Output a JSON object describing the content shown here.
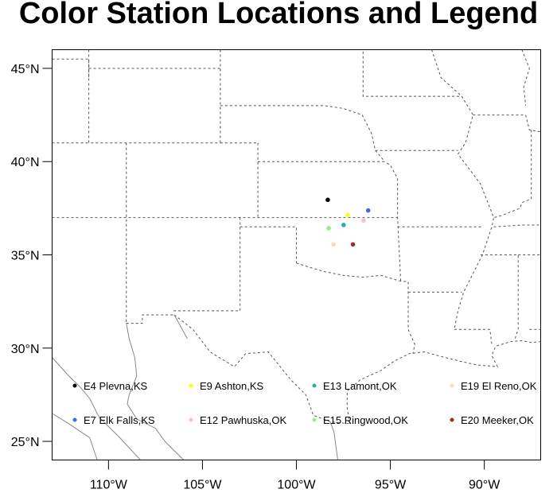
{
  "title": "Color Station Locations and Legend",
  "map": {
    "projection": "cylindrical-equidistant",
    "lon_range": [
      -113,
      -87
    ],
    "lat_range": [
      24,
      46
    ],
    "lon_ticks": [
      {
        "value": -110,
        "label": "110°W"
      },
      {
        "value": -105,
        "label": "105°W"
      },
      {
        "value": -100,
        "label": "100°W"
      },
      {
        "value": -95,
        "label": "95°W"
      },
      {
        "value": -90,
        "label": "90°W"
      }
    ],
    "lat_ticks": [
      {
        "value": 45,
        "label": "45°N"
      },
      {
        "value": 40,
        "label": "40°N"
      },
      {
        "value": 35,
        "label": "35°N"
      },
      {
        "value": 30,
        "label": "30°N"
      },
      {
        "value": 25,
        "label": "25°N"
      }
    ],
    "boundary_style": {
      "us_states": "dashed gray",
      "mexico": "solid gray"
    }
  },
  "stations": [
    {
      "name": "E4 Plevna,KS",
      "lat": 37.95,
      "lon": -98.33,
      "color": "#000000"
    },
    {
      "name": "E7 Elk Falls,KS",
      "lat": 37.38,
      "lon": -96.18,
      "color": "#4169e1"
    },
    {
      "name": "E9 Ashton,KS",
      "lat": 37.13,
      "lon": -97.27,
      "color": "#ffff00"
    },
    {
      "name": "E12 Pawhuska,OK",
      "lat": 36.84,
      "lon": -96.43,
      "color": "#ffc0cb"
    },
    {
      "name": "E13 Lamont,OK",
      "lat": 36.6,
      "lon": -97.49,
      "color": "#20b2aa"
    },
    {
      "name": "E15 Ringwood,OK",
      "lat": 36.43,
      "lon": -98.28,
      "color": "#90ee90"
    },
    {
      "name": "E19 El Reno,OK",
      "lat": 35.56,
      "lon": -98.02,
      "color": "#f5deb3"
    },
    {
      "name": "E20 Meeker,OK",
      "lat": 35.56,
      "lon": -96.99,
      "color": "#a52a2a"
    }
  ]
}
